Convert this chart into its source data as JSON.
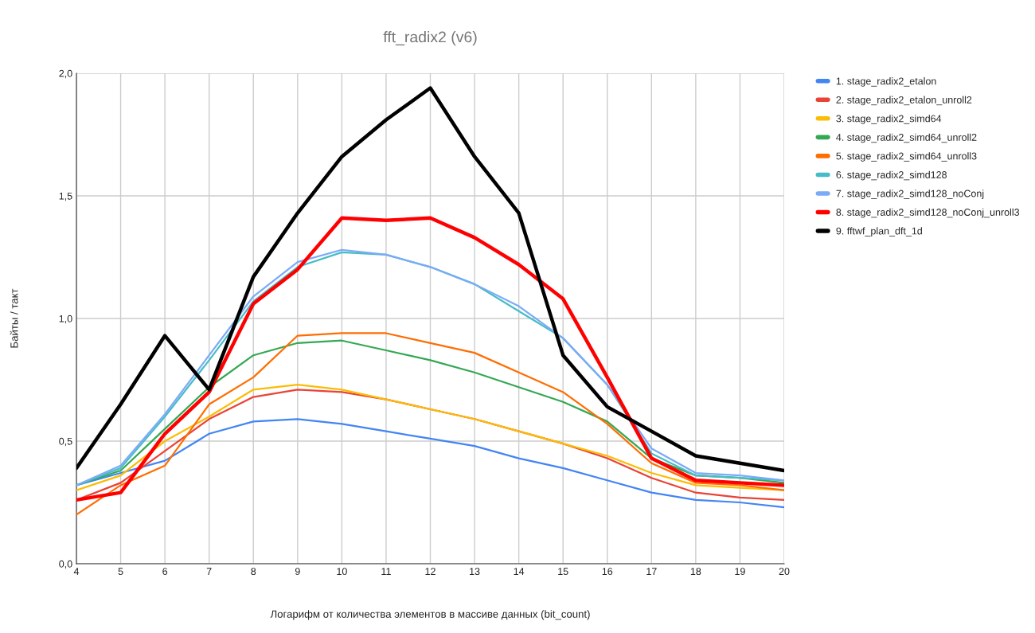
{
  "chart_data": {
    "type": "line",
    "title": "fft_radix2 (v6)",
    "xlabel": "Логарифм от количества элементов в массиве данных (bit_count)",
    "ylabel": "Байты / такт",
    "x": [
      4,
      5,
      6,
      7,
      8,
      9,
      10,
      11,
      12,
      13,
      14,
      15,
      16,
      17,
      18,
      19,
      20
    ],
    "xlim": [
      4,
      20
    ],
    "xticks": [
      4,
      5,
      6,
      7,
      8,
      9,
      10,
      11,
      12,
      13,
      14,
      15,
      16,
      17,
      18,
      19,
      20
    ],
    "ylim": [
      0,
      2
    ],
    "yticks": [
      {
        "value": 0,
        "label": "0,0"
      },
      {
        "value": 0.5,
        "label": "0,5"
      },
      {
        "value": 1,
        "label": "1,0"
      },
      {
        "value": 1.5,
        "label": "1,5"
      },
      {
        "value": 2,
        "label": "2,0"
      }
    ],
    "grid": true,
    "legend": "right",
    "marker": "none",
    "line_style": "solid",
    "series": [
      {
        "name": "1. stage_radix2_etalon",
        "color": "#4285f4",
        "values": [
          0.32,
          0.37,
          0.42,
          0.53,
          0.58,
          0.59,
          0.57,
          0.54,
          0.51,
          0.48,
          0.43,
          0.39,
          0.34,
          0.29,
          0.26,
          0.25,
          0.23
        ]
      },
      {
        "name": "2. stage_radix2_etalon_unroll2",
        "color": "#ea4335",
        "values": [
          0.26,
          0.33,
          0.46,
          0.59,
          0.68,
          0.71,
          0.7,
          0.67,
          0.63,
          0.59,
          0.54,
          0.49,
          0.43,
          0.35,
          0.29,
          0.27,
          0.26
        ]
      },
      {
        "name": "3. stage_radix2_simd64",
        "color": "#fbbc04",
        "values": [
          0.3,
          0.36,
          0.5,
          0.6,
          0.71,
          0.73,
          0.71,
          0.67,
          0.63,
          0.59,
          0.54,
          0.49,
          0.44,
          0.37,
          0.32,
          0.31,
          0.3
        ]
      },
      {
        "name": "4. stage_radix2_simd64_unroll2",
        "color": "#34a853",
        "values": [
          0.32,
          0.38,
          0.55,
          0.72,
          0.85,
          0.9,
          0.91,
          0.87,
          0.83,
          0.78,
          0.72,
          0.66,
          0.58,
          0.43,
          0.36,
          0.35,
          0.33
        ]
      },
      {
        "name": "5. stage_radix2_simd64_unroll3",
        "color": "#ff6d01",
        "values": [
          0.2,
          0.32,
          0.4,
          0.65,
          0.76,
          0.93,
          0.94,
          0.94,
          0.9,
          0.86,
          0.78,
          0.7,
          0.57,
          0.41,
          0.33,
          0.32,
          0.3
        ]
      },
      {
        "name": "6. stage_radix2_simd128",
        "color": "#46bdc6",
        "values": [
          0.32,
          0.39,
          0.6,
          0.83,
          1.07,
          1.21,
          1.27,
          1.26,
          1.21,
          1.14,
          1.03,
          0.92,
          0.73,
          0.45,
          0.36,
          0.35,
          0.34
        ]
      },
      {
        "name": "7. stage_radix2_simd128_noConj",
        "color": "#7baaf7",
        "values": [
          0.32,
          0.4,
          0.61,
          0.85,
          1.09,
          1.23,
          1.28,
          1.26,
          1.21,
          1.14,
          1.05,
          0.92,
          0.73,
          0.47,
          0.37,
          0.36,
          0.34
        ]
      },
      {
        "name": "8. stage_radix2_simd128_noConj_unroll3",
        "color": "#ff0000",
        "values": [
          0.26,
          0.29,
          0.53,
          0.7,
          1.06,
          1.2,
          1.41,
          1.4,
          1.41,
          1.33,
          1.22,
          1.08,
          0.76,
          0.43,
          0.34,
          0.33,
          0.32
        ]
      },
      {
        "name": "9. fftwf_plan_dft_1d",
        "color": "#000000",
        "values": [
          0.39,
          0.65,
          0.93,
          0.71,
          1.17,
          1.43,
          1.66,
          1.81,
          1.94,
          1.66,
          1.43,
          0.85,
          0.64,
          0.54,
          0.44,
          0.41,
          0.38
        ]
      }
    ]
  }
}
